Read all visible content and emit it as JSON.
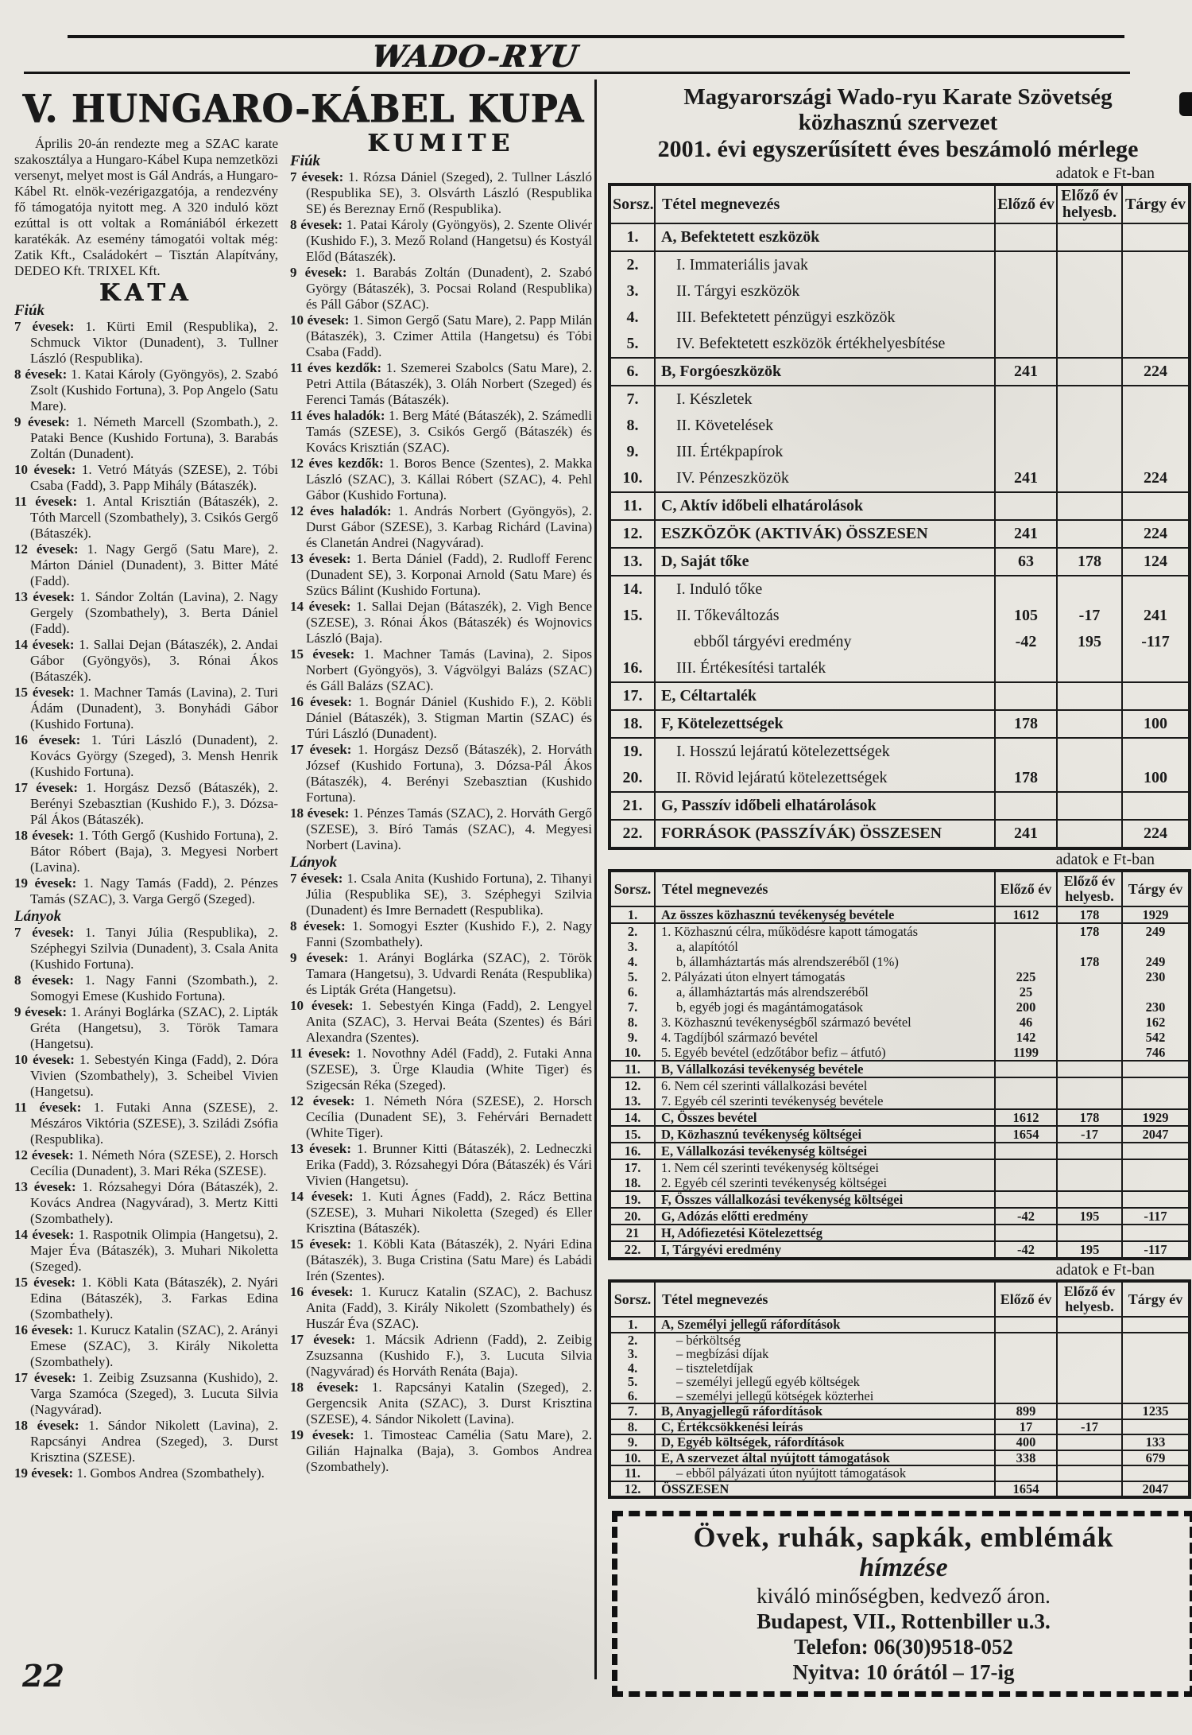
{
  "page": {
    "brand": "WADO-RYU",
    "page_number": "22"
  },
  "article": {
    "title": "V. HUNGARO-KÁBEL KUPA",
    "intro": "Április 20-án rendezte meg a SZAC karate szakosztálya a Hungaro-Kábel Kupa nemzetközi versenyt, melyet most is Gál András, a Hungaro-Kábel Rt. elnök-vezérigazgatója, a rendezvény fő támogatója nyitott meg. A 320 induló közt ezúttal is ott voltak a Romániából érkezett karatékák. Az esemény támogatói voltak még: Zatik Kft., Családokért – Tisztán Alapítvány, DEDEO Kft. TRIXEL Kft.",
    "kata": {
      "heading": "KATA",
      "boys_label": "Fiúk",
      "boys": [
        "7 évesek: 1. Kürti Emil (Respublika), 2. Schmuck Viktor (Dunadent), 3. Tullner László (Respublika).",
        "8 évesek: 1. Katai Károly (Gyöngyös), 2. Szabó Zsolt (Kushido Fortuna), 3. Pop Angelo (Satu Mare).",
        "9 évesek: 1. Németh Marcell (Szombath.), 2. Pataki Bence (Kushido Fortuna), 3. Barabás Zoltán (Dunadent).",
        "10 évesek: 1. Vetró Mátyás (SZESE), 2. Tóbi Csaba (Fadd), 3. Papp Mihály (Bátaszék).",
        "11 évesek: 1. Antal Krisztián (Bátaszék), 2. Tóth Marcell (Szombathely), 3. Csikós Gergő (Bátaszék).",
        "12 évesek: 1. Nagy Gergő (Satu Mare), 2. Márton Dániel (Dunadent), 3. Bitter Máté (Fadd).",
        "13 évesek: 1. Sándor Zoltán (Lavina), 2. Nagy Gergely (Szombathely), 3. Berta Dániel (Fadd).",
        "14 évesek: 1. Sallai Dejan (Bátaszék), 2. Andai Gábor (Gyöngyös), 3. Rónai Ákos (Bátaszék).",
        "15 évesek: 1. Machner Tamás (Lavina), 2. Turi Ádám (Dunadent), 3. Bonyhádi Gábor (Kushido Fortuna).",
        "16 évesek: 1. Túri László (Dunadent), 2. Kovács György (Szeged), 3. Mensh Henrik (Kushido Fortuna).",
        "17 évesek: 1. Horgász Dezső (Bátaszék), 2. Berényi Szebasztian (Kushido F.), 3. Dózsa-Pál Ákos (Bátaszék).",
        "18 évesek: 1. Tóth Gergő (Kushido Fortuna), 2. Bátor Róbert (Baja), 3. Megyesi Norbert (Lavina).",
        "19 évesek: 1. Nagy Tamás (Fadd), 2. Pénzes Tamás (SZAC), 3. Varga Gergő (Szeged)."
      ],
      "girls_label": "Lányok",
      "girls": [
        "7 évesek: 1. Tanyi Júlia (Respublika), 2. Széphegyi Szilvia (Dunadent), 3. Csala Anita (Kushido Fortuna).",
        "8 évesek: 1. Nagy Fanni (Szombath.), 2. Somogyi Emese (Kushido Fortuna).",
        "9 évesek: 1. Arányi Boglárka (SZAC), 2. Lipták Gréta (Hangetsu), 3. Török Tamara (Hangetsu).",
        "10 évesek: 1. Sebestyén Kinga (Fadd), 2. Dóra Vivien (Szombathely), 3. Scheibel Vivien (Hangetsu).",
        "11 évesek: 1. Futaki Anna (SZESE), 2. Mészáros Viktória (SZESE), 3. Sziládi Zsófia (Respublika).",
        "12 évesek: 1. Németh Nóra (SZESE), 2. Horsch Cecília (Dunadent), 3. Mari Réka (SZESE).",
        "13 évesek: 1. Rózsahegyi Dóra (Bátaszék), 2. Kovács Andrea (Nagyvárad), 3. Mertz Kitti (Szombathely).",
        "14 évesek: 1. Raspotnik Olimpia (Hangetsu), 2. Majer Éva (Bátaszék), 3. Muhari Nikoletta (Szeged).",
        "15 évesek: 1. Köbli Kata (Bátaszék), 2. Nyári Edina (Bátaszék), 3. Farkas Edina (Szombathely).",
        "16 évesek: 1. Kurucz Katalin (SZAC), 2. Arányi Emese (SZAC), 3. Király Nikoletta (Szombathely).",
        "17 évesek: 1. Zeibig Zsuzsanna (Kushido), 2. Varga Szamóca (Szeged), 3. Lucuta Silvia (Nagyvárad).",
        "18 évesek: 1. Sándor Nikolett (Lavina), 2. Rapcsányi Andrea (Szeged), 3. Durst Krisztina (SZESE).",
        "19 évesek: 1. Gombos Andrea (Szombathely)."
      ]
    },
    "kumite": {
      "heading": "KUMITE",
      "boys_label": "Fiúk",
      "boys": [
        "7 évesek: 1. Rózsa Dániel (Szeged), 2. Tullner László (Respublika SE), 3. Olsvárth László (Respublika SE) és Bereznay Ernő (Respublika).",
        "8 évesek: 1. Patai Károly (Gyöngyös), 2. Szente Olivér (Kushido F.), 3. Mező Roland (Hangetsu) és Kostyál Előd (Bátaszék).",
        "9 évesek: 1. Barabás Zoltán (Dunadent), 2. Szabó György (Bátaszék), 3. Pocsai Roland (Respublika) és Páll Gábor (SZAC).",
        "10 évesek: 1. Simon Gergő (Satu Mare), 2. Papp Milán (Bátaszék), 3. Czimer Attila (Hangetsu) és Tóbi Csaba (Fadd).",
        "11 éves kezdők: 1. Szemerei Szabolcs (Satu Mare), 2. Petri Attila (Bátaszék), 3. Oláh Norbert (Szeged) és Ferenci Tamás (Bátaszék).",
        "11 éves haladók: 1. Berg Máté (Bátaszék), 2. Számedli Tamás (SZESE), 3. Csikós Gergő (Bátaszék) és Kovács Krisztián (SZAC).",
        "12 éves kezdők: 1. Boros Bence (Szentes), 2. Makka László (SZAC), 3. Kállai Róbert (SZAC), 4. Pehl Gábor (Kushido Fortuna).",
        "12 éves haladók: 1. András Norbert (Gyöngyös), 2. Durst Gábor (SZESE), 3. Karbag Richárd (Lavina) és Clanetán Andrei (Nagyvárad).",
        "13 évesek: 1. Berta Dániel (Fadd), 2. Rudloff Ferenc (Dunadent SE), 3. Korponai Arnold (Satu Mare) és Szücs Bálint (Kushido Fortuna).",
        "14 évesek: 1. Sallai Dejan (Bátaszék), 2. Vigh Bence (SZESE), 3. Rónai Ákos (Bátaszék) és Wojnovics László (Baja).",
        "15 évesek: 1. Machner Tamás (Lavina), 2. Sipos Norbert (Gyöngyös), 3. Vágvölgyi Balázs (SZAC) és Gáll Balázs (SZAC).",
        "16 évesek: 1. Bognár Dániel (Kushido F.), 2. Köbli Dániel (Bátaszék), 3. Stigman Martin (SZAC) és Túri László (Dunadent).",
        "17 évesek: 1. Horgász Dezső (Bátaszék), 2. Horváth József (Kushido Fortuna), 3. Dózsa-Pál Ákos (Bátaszék), 4. Berényi Szebasztian (Kushido Fortuna).",
        "18 évesek: 1. Pénzes Tamás (SZAC), 2. Horváth Gergő (SZESE), 3. Bíró Tamás (SZAC), 4. Megyesi Norbert (Lavina)."
      ],
      "girls_label": "Lányok",
      "girls": [
        "7 évesek: 1. Csala Anita (Kushido Fortuna), 2. Tihanyi Júlia (Respublika SE), 3. Széphegyi Szilvia (Dunadent) és Imre Bernadett (Respublika).",
        "8 évesek: 1. Somogyi Eszter (Kushido F.), 2. Nagy Fanni (Szombathely).",
        "9 évesek: 1. Arányi Boglárka (SZAC), 2. Török Tamara (Hangetsu), 3. Udvardi Renáta (Respublika) és Lipták Gréta (Hangetsu).",
        "10 évesek: 1. Sebestyén Kinga (Fadd), 2. Lengyel Anita (SZAC), 3. Hervai Beáta (Szentes) és Bári Alexandra (Szentes).",
        "11 évesek: 1. Novothny Adél (Fadd), 2. Futaki Anna (SZESE), 3. Ürge Klaudia (White Tiger) és Szigecsán Réka (Szeged).",
        "12 évesek: 1. Németh Nóra (SZESE), 2. Horsch Cecília (Dunadent SE), 3. Fehérvári Bernadett (White Tiger).",
        "13 évesek: 1. Brunner Kitti (Bátaszék), 2. Ledneczki Erika (Fadd), 3. Rózsahegyi Dóra (Bátaszék) és Vári Vivien (Hangetsu).",
        "14 évesek: 1. Kuti Ágnes (Fadd), 2. Rácz Bettina (SZESE), 3. Muhari Nikoletta (Szeged) és Eller Krisztina (Bátaszék).",
        "15 évesek: 1. Köbli Kata (Bátaszék), 2. Nyári Edina (Bátaszék), 3. Buga Cristina (Satu Mare) és Labádi Irén (Szentes).",
        "16 évesek: 1. Kurucz Katalin (SZAC), 2. Bachusz Anita (Fadd), 3. Király Nikolett (Szombathely) és Huszár Éva (SZAC).",
        "17 évesek: 1. Mácsik Adrienn (Fadd), 2. Zeibig Zsuzsanna (Kushido F.), 3. Lucuta Silvia (Nagyvárad) és Horváth Renáta (Baja).",
        "18 évesek: 1. Rapcsányi Katalin (Szeged), 2. Gergencsik Anita (SZAC), 3. Durst Krisztina (SZESE), 4. Sándor Nikolett (Lavina).",
        "19 évesek: 1. Timosteac Camélia (Satu Mare), 2. Gilián Hajnalka (Baja), 3. Gombos Andrea (Szombathely)."
      ]
    }
  },
  "report": {
    "org_line1": "Magyarországi Wado-ryu Karate Szövetség",
    "org_line2": "közhasznú szervezet",
    "title": "2001. évi egyszerűsített éves beszámoló mérlege",
    "units_note": "adatok e Ft-ban",
    "col_headers": [
      "Sorsz.",
      "Tétel megnevezés",
      "Előző év",
      "Előző év\nhelyesb.",
      "Tárgy év"
    ],
    "table1": [
      [
        "1.",
        "A, Befektetett eszközök",
        "",
        "",
        "",
        "b"
      ],
      [
        "2.",
        "I. Immateriális javak",
        "",
        "",
        "",
        "i"
      ],
      [
        "3.",
        "II. Tárgyi eszközök",
        "",
        "",
        "",
        "i"
      ],
      [
        "4.",
        "III. Befektetett pénzügyi eszközök",
        "",
        "",
        "",
        "i"
      ],
      [
        "5.",
        "IV. Befektetett eszközök értékhelyesbítése",
        "",
        "",
        "",
        "i"
      ],
      [
        "6.",
        "B, Forgóeszközök",
        "241",
        "",
        "224",
        "b"
      ],
      [
        "7.",
        "I. Készletek",
        "",
        "",
        "",
        "i"
      ],
      [
        "8.",
        "II. Követelések",
        "",
        "",
        "",
        "i"
      ],
      [
        "9.",
        "III. Értékpapírok",
        "",
        "",
        "",
        "i"
      ],
      [
        "10.",
        "IV. Pénzeszközök",
        "241",
        "",
        "224",
        "i"
      ],
      [
        "11.",
        "C, Aktív időbeli elhatárolások",
        "",
        "",
        "",
        "b"
      ],
      [
        "12.",
        "ESZKÖZÖK (AKTIVÁK) ÖSSZESEN",
        "241",
        "",
        "224",
        "b"
      ],
      [
        "13.",
        "D, Saját tőke",
        "63",
        "178",
        "124",
        "b"
      ],
      [
        "14.",
        "I. Induló tőke",
        "",
        "",
        "",
        "i"
      ],
      [
        "15.",
        "II. Tőkeváltozás",
        "105",
        "-17",
        "241",
        "i"
      ],
      [
        "",
        "ebből tárgyévi eredmény",
        "-42",
        "195",
        "-117",
        "ii"
      ],
      [
        "16.",
        "III. Értékesítési tartalék",
        "",
        "",
        "",
        "i"
      ],
      [
        "17.",
        "E, Céltartalék",
        "",
        "",
        "",
        "b"
      ],
      [
        "18.",
        "F, Kötelezettségek",
        "178",
        "",
        "100",
        "b"
      ],
      [
        "19.",
        "I. Hosszú lejáratú kötelezettségek",
        "",
        "",
        "",
        "i"
      ],
      [
        "20.",
        "II. Rövid lejáratú kötelezettségek",
        "178",
        "",
        "100",
        "i"
      ],
      [
        "21.",
        "G, Passzív időbeli elhatárolások",
        "",
        "",
        "",
        "b"
      ],
      [
        "22.",
        "FORRÁSOK (PASSZÍVÁK) ÖSSZESEN",
        "241",
        "",
        "224",
        "b"
      ]
    ],
    "table2": [
      [
        "1.",
        "Az összes közhasznú tevékenység bevétele",
        "1612",
        "178",
        "1929",
        "b"
      ],
      [
        "2.",
        "1. Közhasznú célra, működésre kapott támogatás",
        "",
        "178",
        "249",
        ""
      ],
      [
        "3.",
        "a, alapítótól",
        "",
        "",
        "",
        "i"
      ],
      [
        "4.",
        "b, államháztartás más alrendszeréből (1%)",
        "",
        "178",
        "249",
        "i"
      ],
      [
        "5.",
        "2. Pályázati úton elnyert támogatás",
        "225",
        "",
        "230",
        ""
      ],
      [
        "6.",
        "a, államháztartás más alrendszeréből",
        "25",
        "",
        "",
        "i"
      ],
      [
        "7.",
        "b, egyéb jogi és magántámogatások",
        "200",
        "",
        "230",
        "i"
      ],
      [
        "8.",
        "3. Közhasznú tevékenységből származó bevétel",
        "46",
        "",
        "162",
        ""
      ],
      [
        "9.",
        "4. Tagdíjból származó bevétel",
        "142",
        "",
        "542",
        ""
      ],
      [
        "10.",
        "5. Egyéb bevétel (edzőtábor befiz – átfutó)",
        "1199",
        "",
        "746",
        ""
      ],
      [
        "11.",
        "B, Vállalkozási tevékenység bevétele",
        "",
        "",
        "",
        "b"
      ],
      [
        "12.",
        "6. Nem cél szerinti vállalkozási bevétel",
        "",
        "",
        "",
        ""
      ],
      [
        "13.",
        "7. Egyéb cél szerinti tevékenység bevétele",
        "",
        "",
        "",
        ""
      ],
      [
        "14.",
        "C, Összes bevétel",
        "1612",
        "178",
        "1929",
        "b"
      ],
      [
        "15.",
        "D, Közhasznú tevékenység költségei",
        "1654",
        "-17",
        "2047",
        "b"
      ],
      [
        "16.",
        "E, Vállalkozási tevékenység költségei",
        "",
        "",
        "",
        "b"
      ],
      [
        "17.",
        "1. Nem cél szerinti tevékenység költségei",
        "",
        "",
        "",
        ""
      ],
      [
        "18.",
        "2. Egyéb cél szerinti tevékenység költségei",
        "",
        "",
        "",
        ""
      ],
      [
        "19.",
        "F, Összes vállalkozási tevékenység költségei",
        "",
        "",
        "",
        "b"
      ],
      [
        "20.",
        "G, Adózás előtti eredmény",
        "-42",
        "195",
        "-117",
        "b"
      ],
      [
        "21",
        "H, Adófiezetési Kötelezettség",
        "",
        "",
        "",
        "b"
      ],
      [
        "22.",
        "I, Tárgyévi eredmény",
        "-42",
        "195",
        "-117",
        "b"
      ]
    ],
    "table3": [
      [
        "1.",
        "A, Személyi jellegű ráfordítások",
        "",
        "",
        "",
        "b"
      ],
      [
        "2.",
        "– bérköltség",
        "",
        "",
        "",
        "i"
      ],
      [
        "3.",
        "– megbízási díjak",
        "",
        "",
        "",
        "i"
      ],
      [
        "4.",
        "– tiszteletdíjak",
        "",
        "",
        "",
        "i"
      ],
      [
        "5.",
        "– személyi jellegű egyéb költségek",
        "",
        "",
        "",
        "i"
      ],
      [
        "6.",
        "– személyi jellegű kötségek közterhei",
        "",
        "",
        "",
        "i"
      ],
      [
        "7.",
        "B, Anyagjellegű ráfordítások",
        "899",
        "",
        "1235",
        "b"
      ],
      [
        "8.",
        "C, Értékcsökkenési leírás",
        "17",
        "-17",
        "",
        "b"
      ],
      [
        "9.",
        "D, Egyéb költségek, ráfordítások",
        "400",
        "",
        "133",
        "b"
      ],
      [
        "10.",
        "E, A szervezet által nyújtott támogatások",
        "338",
        "",
        "679",
        "b"
      ],
      [
        "11.",
        "– ebből pályázati úton nyújtott támogatások",
        "",
        "",
        "",
        "i"
      ],
      [
        "12.",
        "ÖSSZESEN",
        "1654",
        "",
        "2047",
        "b"
      ]
    ]
  },
  "ad": {
    "line1": "Övek, ruhák, sapkák, emblémák",
    "line2": "hímzése",
    "line3": "kiváló minőségben, kedvező áron.",
    "line4": "Budapest, VII., Rottenbiller u.3.",
    "line5": "Telefon: 06(30)9518-052",
    "line6": "Nyitva: 10 órától – 17-ig"
  }
}
